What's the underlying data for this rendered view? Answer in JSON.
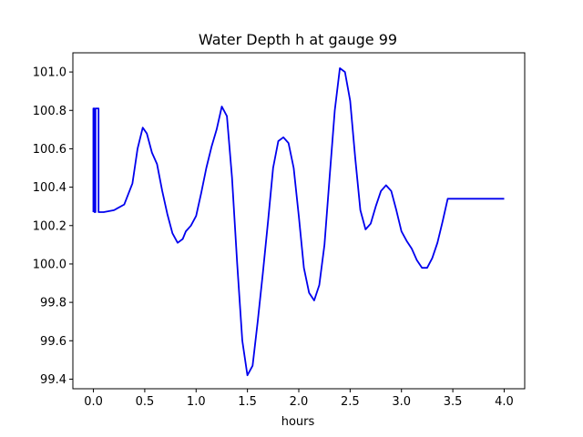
{
  "chart_data": {
    "type": "line",
    "title": "Water Depth h at gauge 99",
    "xlabel": "hours",
    "ylabel": "",
    "xlim": [
      -0.2,
      4.2
    ],
    "ylim": [
      99.35,
      101.1
    ],
    "xticks": [
      0.0,
      0.5,
      1.0,
      1.5,
      2.0,
      2.5,
      3.0,
      3.5,
      4.0
    ],
    "xtick_labels": [
      "0.0",
      "0.5",
      "1.0",
      "1.5",
      "2.0",
      "2.5",
      "3.0",
      "3.5",
      "4.0"
    ],
    "yticks": [
      99.4,
      99.6,
      99.8,
      100.0,
      100.2,
      100.4,
      100.6,
      100.8,
      101.0
    ],
    "ytick_labels": [
      "99.4",
      "99.6",
      "99.8",
      "100.0",
      "100.2",
      "100.4",
      "100.6",
      "100.8",
      "101.0"
    ],
    "grid": false,
    "legend": "none",
    "colors": {
      "line": "#0000ee"
    },
    "series": [
      {
        "x": [
          0.0,
          0.0,
          0.01,
          0.01,
          0.02,
          0.02,
          0.03,
          0.03,
          0.04,
          0.04,
          0.05,
          0.05,
          0.1,
          0.2,
          0.3,
          0.38,
          0.43,
          0.48,
          0.52,
          0.57,
          0.62,
          0.67,
          0.72,
          0.77,
          0.82,
          0.87,
          0.9,
          0.95,
          1.0,
          1.05,
          1.1,
          1.15,
          1.2,
          1.25,
          1.3,
          1.35,
          1.4,
          1.45,
          1.5,
          1.55,
          1.6,
          1.65,
          1.7,
          1.75,
          1.8,
          1.85,
          1.9,
          1.95,
          2.0,
          2.05,
          2.1,
          2.15,
          2.2,
          2.25,
          2.3,
          2.35,
          2.4,
          2.45,
          2.5,
          2.55,
          2.6,
          2.65,
          2.7,
          2.75,
          2.8,
          2.85,
          2.9,
          2.95,
          3.0,
          3.05,
          3.1,
          3.15,
          3.2,
          3.25,
          3.3,
          3.35,
          3.4,
          3.45,
          3.5,
          3.55,
          3.6,
          3.65,
          3.7,
          3.75,
          3.8,
          3.85,
          3.9,
          3.95,
          4.0
        ],
        "y": [
          100.27,
          100.81,
          100.81,
          100.27,
          100.27,
          100.81,
          100.81,
          100.81,
          100.81,
          100.81,
          100.81,
          100.27,
          100.27,
          100.28,
          100.31,
          100.42,
          100.6,
          100.71,
          100.68,
          100.58,
          100.52,
          100.38,
          100.26,
          100.16,
          100.11,
          100.13,
          100.17,
          100.2,
          100.25,
          100.37,
          100.5,
          100.61,
          100.7,
          100.82,
          100.77,
          100.45,
          100.0,
          99.6,
          99.42,
          99.47,
          99.7,
          99.95,
          100.22,
          100.5,
          100.64,
          100.66,
          100.63,
          100.5,
          100.25,
          99.98,
          99.85,
          99.81,
          99.89,
          100.1,
          100.45,
          100.8,
          101.02,
          101.0,
          100.85,
          100.55,
          100.28,
          100.18,
          100.21,
          100.3,
          100.38,
          100.41,
          100.38,
          100.28,
          100.17,
          100.12,
          100.08,
          100.02,
          99.98,
          99.98,
          100.03,
          100.11,
          100.22,
          100.34,
          100.34,
          100.34,
          100.34,
          100.34,
          100.34,
          100.34,
          100.34,
          100.34,
          100.34,
          100.34,
          100.34
        ]
      }
    ]
  }
}
